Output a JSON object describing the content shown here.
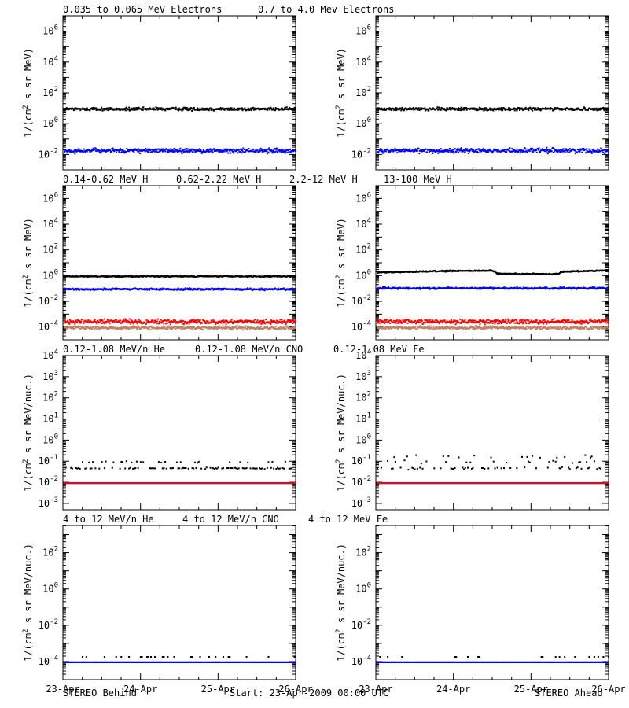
{
  "footer": {
    "left": "STEREO Behind",
    "center": "Start: 23-Apr-2009 00:00 UTC",
    "right": "STEREO Ahead"
  },
  "colors": {
    "black": "#000000",
    "blue": "#0000ff",
    "tan": "#c08060",
    "red": "#ff0000"
  },
  "chart_data": [
    {
      "type": "scatter",
      "row_title": [
        "0.035 to 0.065 MeV Electrons",
        "0.7 to 4.0 Mev Electrons"
      ],
      "ylabel": "1/(cm2 s sr MeV)",
      "yscale": "log",
      "ylim_exp": [
        -3,
        7
      ],
      "ytick_exp": [
        -2,
        0,
        2,
        4,
        6
      ],
      "xticks": [
        "23-Apr",
        "24-Apr",
        "25-Apr",
        "26-Apr"
      ],
      "panels": [
        {
          "spacecraft": "STEREO Behind",
          "series": [
            {
              "name": "0.035 to 0.065 MeV Electrons",
              "color": "#000000",
              "level": 10,
              "noise": 0.08
            },
            {
              "name": "0.7 to 4.0 Mev Electrons",
              "color": "#0000ff",
              "level": 0.02,
              "noise": 0.12
            }
          ]
        },
        {
          "spacecraft": "STEREO Ahead",
          "series": [
            {
              "name": "0.035 to 0.065 MeV Electrons",
              "color": "#000000",
              "level": 10,
              "noise": 0.08
            },
            {
              "name": "0.7 to 4.0 Mev Electrons",
              "color": "#0000ff",
              "level": 0.02,
              "noise": 0.12
            }
          ]
        }
      ]
    },
    {
      "type": "scatter",
      "row_title": [
        "0.14-0.62 MeV H",
        "0.62-2.22 MeV H",
        "2.2-12 MeV H",
        "13-100 MeV H"
      ],
      "ylabel": "1/(cm2 s sr MeV)",
      "yscale": "log",
      "ylim_exp": [
        -5,
        7
      ],
      "ytick_exp": [
        -4,
        -2,
        0,
        2,
        4,
        6
      ],
      "xticks": [
        "23-Apr",
        "24-Apr",
        "25-Apr",
        "26-Apr"
      ],
      "panels": [
        {
          "spacecraft": "STEREO Behind",
          "series": [
            {
              "name": "0.14-0.62 MeV H",
              "color": "#000000",
              "level": 1.0,
              "noise": 0.04
            },
            {
              "name": "0.62-2.22 MeV H",
              "color": "#0000ff",
              "level": 0.1,
              "noise": 0.06
            },
            {
              "name": "2.2-12 MeV H",
              "color": "#c08060",
              "level": 0.0001,
              "noise": 0.1
            },
            {
              "name": "13-100 MeV H",
              "color": "#ff0000",
              "level": 0.0003,
              "noise": 0.14
            }
          ]
        },
        {
          "spacecraft": "STEREO Ahead",
          "series": [
            {
              "name": "0.14-0.62 MeV H",
              "color": "#000000",
              "profile": [
                [
                  0,
                  2.0
                ],
                [
                  0.3,
                  2.6
                ],
                [
                  0.5,
                  2.8
                ],
                [
                  0.52,
                  1.6
                ],
                [
                  0.78,
                  1.5
                ],
                [
                  0.8,
                  2.3
                ],
                [
                  1,
                  3.0
                ]
              ],
              "noise": 0.04
            },
            {
              "name": "0.62-2.22 MeV H",
              "color": "#0000ff",
              "level": 0.12,
              "noise": 0.06
            },
            {
              "name": "2.2-12 MeV H",
              "color": "#c08060",
              "level": 0.0001,
              "noise": 0.1
            },
            {
              "name": "13-100 MeV H",
              "color": "#ff0000",
              "level": 0.0003,
              "noise": 0.14
            }
          ]
        }
      ]
    },
    {
      "type": "scatter",
      "row_title": [
        "0.12-1.08 MeV/n He",
        "0.12-1.08 MeV/n CNO",
        "0.12-1.08 MeV Fe"
      ],
      "ylabel": "1/(cm2 s sr MeV/nuc.)",
      "yscale": "log",
      "ylim_exp": [
        -3.3,
        4
      ],
      "ytick_exp": [
        -3,
        -2,
        -1,
        0,
        1,
        2,
        3,
        4
      ],
      "xticks": [
        "23-Apr",
        "24-Apr",
        "25-Apr",
        "26-Apr"
      ],
      "panels": [
        {
          "spacecraft": "STEREO Behind",
          "series": [
            {
              "name": "0.12-1.08 MeV/n He",
              "color": "#000000",
              "levels": [
                0.05,
                0.1
              ],
              "noise": 0.03,
              "sparse": true
            },
            {
              "name": "0.12-1.08 MeV/n CNO",
              "color": "#0000ff",
              "level": 0.01,
              "noise": 0.0
            },
            {
              "name": "0.12-1.08 MeV Fe",
              "color": "#ff0000",
              "level": 0.01,
              "noise": 0.0,
              "sparse": true
            }
          ]
        },
        {
          "spacecraft": "STEREO Ahead",
          "series": [
            {
              "name": "0.12-1.08 MeV/n He",
              "color": "#000000",
              "levels": [
                0.05,
                0.1,
                0.18
              ],
              "noise": 0.05,
              "sparse": true
            },
            {
              "name": "0.12-1.08 MeV/n CNO",
              "color": "#0000ff",
              "level": 0.01,
              "noise": 0.0
            },
            {
              "name": "0.12-1.08 MeV Fe",
              "color": "#ff0000",
              "level": 0.01,
              "noise": 0.0,
              "sparse": true
            }
          ]
        }
      ]
    },
    {
      "type": "scatter",
      "row_title": [
        "4 to 12 MeV/n He",
        "4 to 12 MeV/n CNO",
        "4 to 12 MeV Fe"
      ],
      "ylabel": "1/(cm2 s sr MeV/nuc.)",
      "yscale": "log",
      "ylim_exp": [
        -5,
        3.5
      ],
      "ytick_exp": [
        -4,
        -2,
        0,
        2
      ],
      "xticks": [
        "23-Apr",
        "24-Apr",
        "25-Apr",
        "26-Apr"
      ],
      "panels": [
        {
          "spacecraft": "STEREO Behind",
          "series": [
            {
              "name": "4 to 12 MeV/n He",
              "color": "#000000",
              "levels": [
                0.0001,
                0.0002
              ],
              "noise": 0.0,
              "sparse": true
            },
            {
              "name": "4 to 12 MeV/n CNO",
              "color": "#0000ff",
              "level": 0.0001,
              "noise": 0.0
            },
            {
              "name": "4 to 12 MeV Fe",
              "color": "#ff0000",
              "level": 1e-05,
              "noise": 0.0,
              "sparse": true
            }
          ]
        },
        {
          "spacecraft": "STEREO Ahead",
          "series": [
            {
              "name": "4 to 12 MeV/n He",
              "color": "#000000",
              "levels": [
                0.0001,
                0.0002
              ],
              "noise": 0.0,
              "sparse": true
            },
            {
              "name": "4 to 12 MeV/n CNO",
              "color": "#0000ff",
              "level": 0.0001,
              "noise": 0.0
            },
            {
              "name": "4 to 12 MeV Fe",
              "color": "#ff0000",
              "level": 1e-05,
              "noise": 0.0,
              "sparse": true
            }
          ]
        }
      ]
    }
  ]
}
